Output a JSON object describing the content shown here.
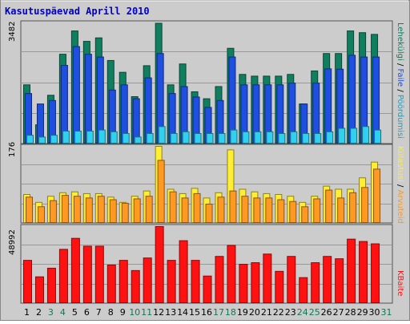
{
  "title": "Kasutuspäevad Aprill 2010",
  "colors": {
    "pages": "#0f7f5f",
    "files": "#1f4fe0",
    "visits": "#30d0f0",
    "sites": "#ffee33",
    "visitors_bar": "#ff9922",
    "kbytes": "#ff1111",
    "weekend_label": "#117755",
    "weekday_label": "#000000"
  },
  "legend": {
    "top": [
      {
        "text": "Lehekülgi",
        "color": "#0f7f5f"
      },
      {
        "text": " / ",
        "color": "#000000"
      },
      {
        "text": "Faile",
        "color": "#1f4fe0"
      },
      {
        "text": " / ",
        "color": "#000000"
      },
      {
        "text": "Pöördumisi",
        "color": "#20a0c0"
      }
    ],
    "middle": [
      {
        "text": "Külastusi",
        "color": "#ffee33"
      },
      {
        "text": " / ",
        "color": "#000000"
      },
      {
        "text": "Arvuteid",
        "color": "#ff9922"
      }
    ],
    "bottom": [
      {
        "text": "KBaite",
        "color": "#ff1111"
      }
    ]
  },
  "chart_data": [
    {
      "type": "bar",
      "name": "hits-panel",
      "ymax_label": "3482",
      "ylim": [
        0,
        3482
      ],
      "days": [
        1,
        2,
        3,
        4,
        5,
        6,
        7,
        8,
        9,
        10,
        11,
        12,
        13,
        14,
        15,
        16,
        17,
        18,
        19,
        20,
        21,
        22,
        23,
        24,
        25,
        26,
        27,
        28,
        29,
        30,
        31
      ],
      "series": [
        {
          "name": "Lehekülgi",
          "values": [
            1700,
            550,
            1400,
            2580,
            3250,
            2950,
            3050,
            2400,
            2060,
            1360,
            2250,
            3470,
            1700,
            2300,
            1500,
            1300,
            1650,
            2750,
            2000,
            1950,
            1950,
            1950,
            2000,
            1150,
            2100,
            2600,
            2600,
            3250,
            3200,
            3150
          ]
        },
        {
          "name": "Faile",
          "values": [
            1450,
            1150,
            1250,
            2260,
            2800,
            2580,
            2500,
            1550,
            1700,
            1300,
            1900,
            2600,
            1450,
            1650,
            1350,
            1050,
            1250,
            2500,
            1700,
            1700,
            1700,
            1700,
            1750,
            1150,
            1750,
            2160,
            2150,
            2550,
            2500,
            2500
          ]
        },
        {
          "name": "Pöördumisi",
          "values": [
            250,
            200,
            250,
            370,
            370,
            370,
            400,
            350,
            300,
            200,
            300,
            500,
            300,
            350,
            300,
            300,
            300,
            400,
            350,
            350,
            350,
            300,
            350,
            300,
            300,
            350,
            450,
            450,
            500,
            400
          ]
        }
      ]
    },
    {
      "type": "bar",
      "name": "visits-panel",
      "ymax_label": "176",
      "ylim": [
        0,
        176
      ],
      "series": [
        {
          "name": "Külastusi",
          "values": [
            66,
            48,
            62,
            70,
            72,
            68,
            68,
            60,
            48,
            62,
            74,
            176,
            78,
            68,
            80,
            58,
            70,
            168,
            78,
            72,
            68,
            66,
            62,
            48,
            62,
            85,
            78,
            78,
            104,
            140
          ]
        },
        {
          "name": "Arvuteid",
          "values": [
            60,
            38,
            52,
            64,
            62,
            58,
            62,
            54,
            46,
            56,
            62,
            144,
            72,
            58,
            68,
            44,
            60,
            74,
            62,
            58,
            58,
            54,
            50,
            38,
            56,
            76,
            58,
            70,
            82,
            124
          ]
        }
      ]
    },
    {
      "type": "bar",
      "name": "kbytes-panel",
      "ymax_label": "48992",
      "ylim": [
        0,
        48992
      ],
      "series": [
        {
          "name": "KBaite",
          "values": [
            27500,
            17000,
            22500,
            34500,
            41500,
            36500,
            36500,
            24500,
            27500,
            21000,
            29000,
            48992,
            27500,
            40000,
            27500,
            17500,
            30000,
            37000,
            25000,
            26000,
            31500,
            20500,
            30000,
            16500,
            26000,
            30000,
            28500,
            41000,
            39500,
            38000
          ]
        }
      ]
    }
  ],
  "x_labels": [
    {
      "text": "1",
      "weekend": false
    },
    {
      "text": "2",
      "weekend": false
    },
    {
      "text": "3",
      "weekend": true
    },
    {
      "text": "4",
      "weekend": true
    },
    {
      "text": "5",
      "weekend": false
    },
    {
      "text": "6",
      "weekend": false
    },
    {
      "text": "7",
      "weekend": false
    },
    {
      "text": "8",
      "weekend": false
    },
    {
      "text": "9",
      "weekend": false
    },
    {
      "text": "10",
      "weekend": true
    },
    {
      "text": "11",
      "weekend": true
    },
    {
      "text": "12",
      "weekend": false
    },
    {
      "text": "13",
      "weekend": false
    },
    {
      "text": "14",
      "weekend": false
    },
    {
      "text": "15",
      "weekend": false
    },
    {
      "text": "16",
      "weekend": false
    },
    {
      "text": "17",
      "weekend": true
    },
    {
      "text": "18",
      "weekend": true
    },
    {
      "text": "19",
      "weekend": false
    },
    {
      "text": "20",
      "weekend": false
    },
    {
      "text": "21",
      "weekend": false
    },
    {
      "text": "22",
      "weekend": false
    },
    {
      "text": "23",
      "weekend": false
    },
    {
      "text": "24",
      "weekend": true
    },
    {
      "text": "25",
      "weekend": true
    },
    {
      "text": "26",
      "weekend": false
    },
    {
      "text": "27",
      "weekend": false
    },
    {
      "text": "28",
      "weekend": false
    },
    {
      "text": "29",
      "weekend": false
    },
    {
      "text": "30",
      "weekend": false
    },
    {
      "text": "31",
      "weekend": true
    }
  ]
}
